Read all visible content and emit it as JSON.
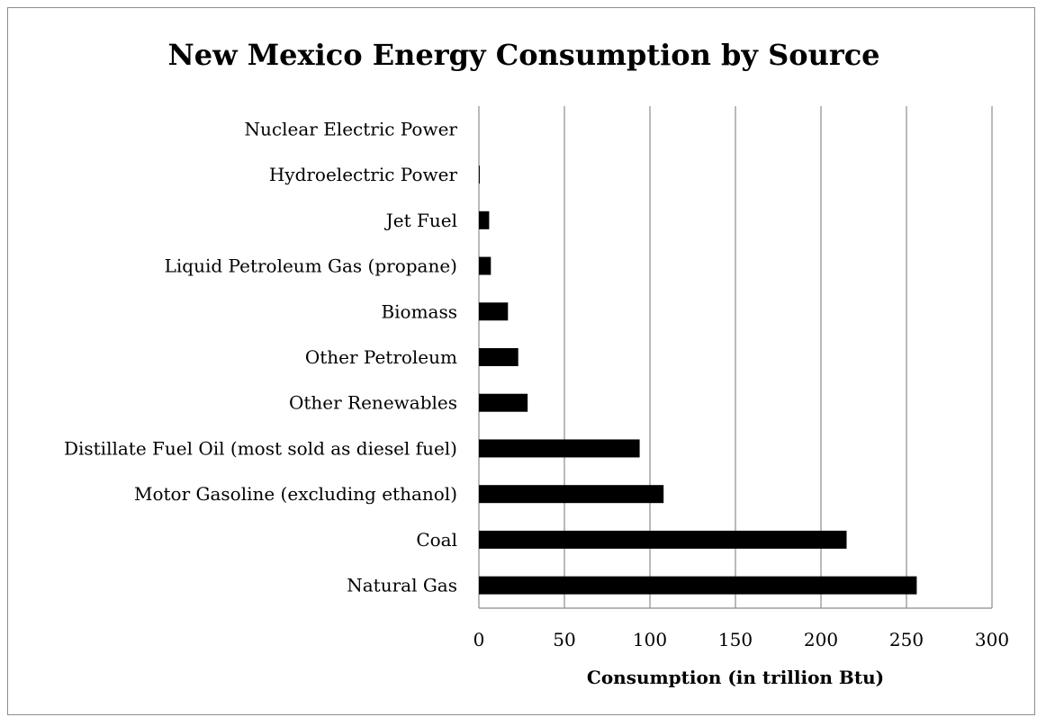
{
  "chart_data": {
    "type": "bar",
    "orientation": "horizontal",
    "title": "New Mexico Energy Consumption by Source",
    "xlabel": "Consumption (in trillion Btu)",
    "ylabel": "",
    "categories": [
      "Nuclear Electric Power",
      "Hydroelectric Power",
      "Jet Fuel",
      "Liquid Petroleum Gas (propane)",
      "Biomass",
      "Other Petroleum",
      "Other Renewables",
      "Distillate Fuel Oil (most sold as diesel fuel)",
      "Motor Gasoline (excluding ethanol)",
      "Coal",
      "Natural Gas"
    ],
    "values": [
      0,
      0.5,
      6,
      7,
      17,
      23,
      28.5,
      94,
      108,
      215,
      256
    ],
    "xlim": [
      0,
      300
    ],
    "xticks": [
      "0",
      "50",
      "100",
      "150",
      "200",
      "250",
      "300"
    ],
    "grid": true,
    "legend": "none",
    "bar_color": "#000000"
  }
}
